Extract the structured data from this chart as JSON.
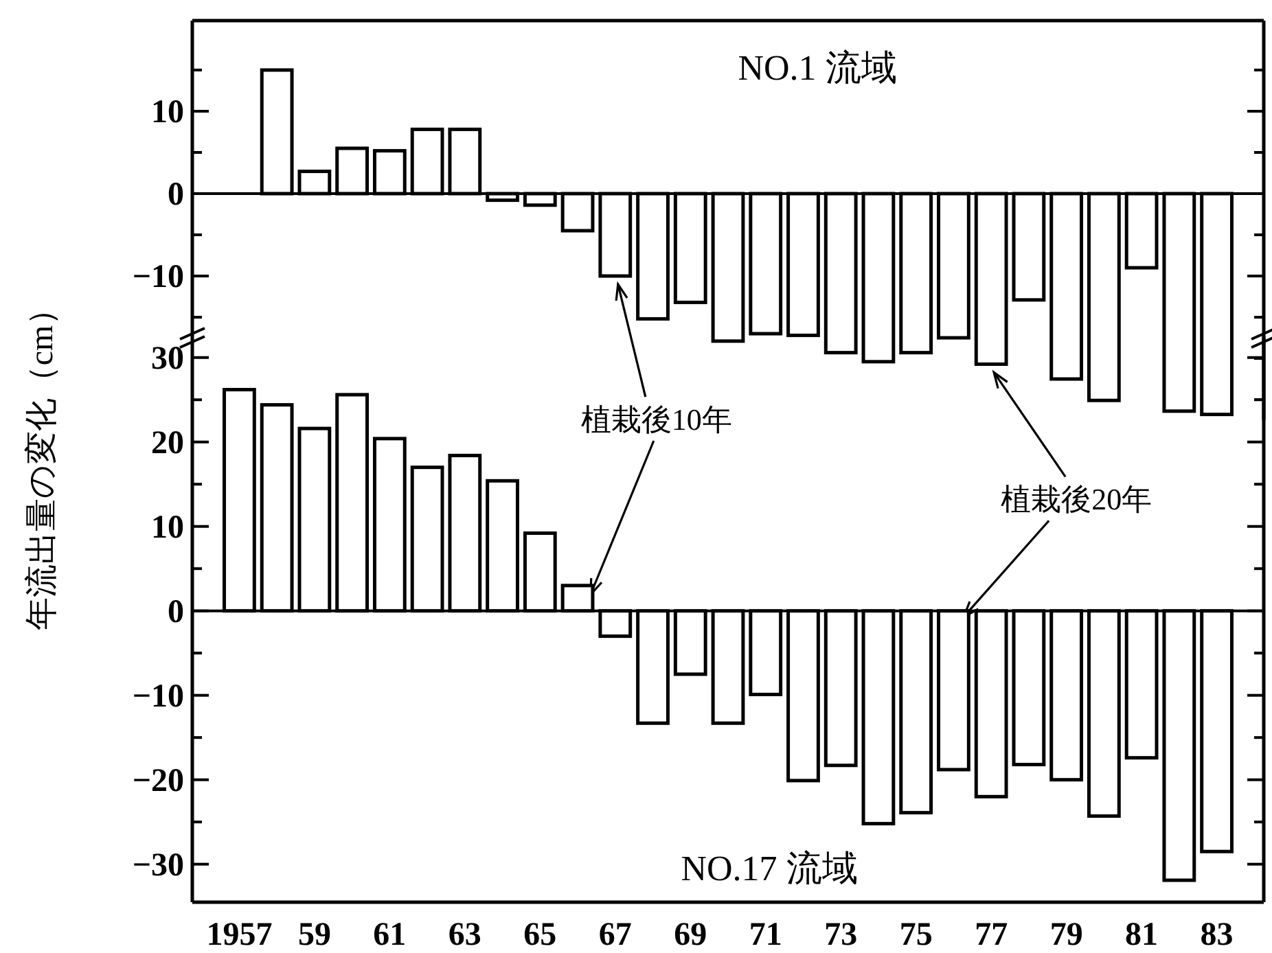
{
  "chart_data": [
    {
      "type": "bar",
      "title": "NO.1 流域",
      "ylabel": "年流出量の変化（cm）",
      "categories": [
        "1957",
        null,
        "59",
        null,
        "61",
        null,
        "63",
        null,
        "65",
        null,
        "67",
        null,
        "69",
        null,
        "71",
        null,
        "73",
        null,
        "75",
        null,
        "77",
        null,
        "79",
        null,
        "81",
        null,
        "83"
      ],
      "values": [
        null,
        15,
        2.7,
        5.5,
        5.2,
        7.8,
        7.8,
        -0.8,
        -1.4,
        -4.5,
        -10,
        -15.2,
        -13.2,
        -17.9,
        -17,
        -17.2,
        -19.3,
        -20.4,
        -19.3,
        -17.5,
        -20.7,
        -12.9,
        -22.5,
        -25.1,
        -9,
        -26.4,
        -26.8
      ],
      "color": "#ffffff",
      "ylim": [
        -27.5,
        21
      ],
      "yticks": [
        {
          "value": 15,
          "label": null
        },
        10,
        {
          "value": 5,
          "label": null
        },
        0,
        {
          "value": -5,
          "label": null
        },
        {
          "value": -10,
          "label": "−10"
        },
        {
          "value": -15,
          "label": null
        },
        {
          "value": -20,
          "label": null
        },
        {
          "value": -25,
          "label": null
        }
      ],
      "tick_labels": "y",
      "annotations": [
        {
          "text": "植栽後10年",
          "x": "67",
          "y": -10
        },
        {
          "text": "植栽後20年",
          "x": "77",
          "y": -20.7
        }
      ]
    },
    {
      "type": "bar",
      "title": "NO.17 流域",
      "categories": [
        "1957",
        null,
        "59",
        null,
        "61",
        null,
        "63",
        null,
        "65",
        null,
        "67",
        null,
        "69",
        null,
        "71",
        null,
        "73",
        null,
        "75",
        null,
        "77",
        null,
        "79",
        null,
        "81",
        null,
        "83"
      ],
      "values": [
        26.2,
        24.4,
        21.6,
        25.6,
        20.4,
        17,
        18.4,
        15.4,
        9.2,
        3,
        -3,
        -13.3,
        -7.5,
        -13.3,
        -9.9,
        -20.1,
        -18.3,
        -25.2,
        -23.9,
        -18.8,
        -22,
        -18.2,
        -20,
        -24.3,
        -17.4,
        -31.9,
        -28.5
      ],
      "color": "#ffffff",
      "ylim": [
        -34.5,
        32.5
      ],
      "yticks": [
        30,
        {
          "value": 25,
          "label": null
        },
        20,
        {
          "value": 15,
          "label": null
        },
        10,
        {
          "value": 5,
          "label": null
        },
        0,
        {
          "value": -5,
          "label": null
        },
        {
          "value": -10,
          "label": "−10"
        },
        {
          "value": -15,
          "label": null
        },
        {
          "value": -20,
          "label": "−20"
        },
        {
          "value": -25,
          "label": null
        },
        {
          "value": -30,
          "label": "−30"
        }
      ]
    }
  ]
}
